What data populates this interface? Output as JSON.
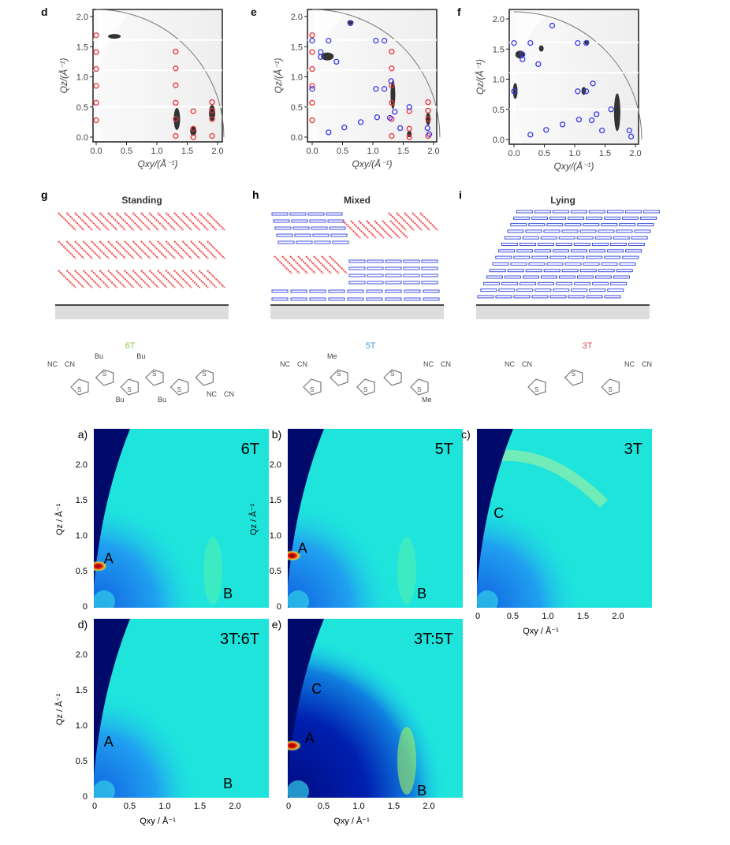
{
  "chart_data": [
    {
      "type": "scatter",
      "panel": "d",
      "xlabel": "Qxy/(Å⁻¹)",
      "ylabel": "Qz/(Å⁻¹)",
      "xlim": [
        0,
        2.0
      ],
      "ylim": [
        0,
        2.0
      ],
      "xticks": [
        "0.0",
        "0.5",
        "1.0",
        "1.5",
        "2.0"
      ],
      "yticks": [
        "0.0",
        "0.5",
        "1.0",
        "1.5",
        "2.0"
      ],
      "series": [
        {
          "name": "standing",
          "color": "#e8333a",
          "points": [
            [
              0,
              0.28
            ],
            [
              0,
              0.57
            ],
            [
              0,
              0.85
            ],
            [
              0,
              1.13
            ],
            [
              0,
              1.41
            ],
            [
              0,
              1.69
            ],
            [
              1.31,
              0.02
            ],
            [
              1.31,
              0.3
            ],
            [
              1.31,
              0.57
            ],
            [
              1.31,
              0.86
            ],
            [
              1.31,
              1.14
            ],
            [
              1.31,
              1.42
            ],
            [
              1.6,
              0.0
            ],
            [
              1.6,
              0.14
            ],
            [
              1.6,
              0.43
            ],
            [
              1.91,
              0.02
            ],
            [
              1.91,
              0.3
            ],
            [
              1.91,
              0.44
            ],
            [
              1.91,
              0.58
            ]
          ]
        }
      ]
    },
    {
      "type": "scatter",
      "panel": "e",
      "xlabel": "Qxy/(Å⁻¹)",
      "ylabel": "Qz/(Å⁻¹)",
      "xlim": [
        0,
        2.0
      ],
      "ylim": [
        0,
        2.0
      ],
      "xticks": [
        "0.0",
        "0.5",
        "1.0",
        "1.5",
        "2.0"
      ],
      "yticks": [
        "0.0",
        "0.5",
        "1.0",
        "1.5",
        "2.0"
      ],
      "series": [
        {
          "name": "standing",
          "color": "#e8333a",
          "points": [
            [
              0,
              0.28
            ],
            [
              0,
              0.57
            ],
            [
              0,
              0.85
            ],
            [
              0,
              1.13
            ],
            [
              0,
              1.41
            ],
            [
              0,
              1.69
            ],
            [
              1.31,
              0.02
            ],
            [
              1.31,
              0.3
            ],
            [
              1.31,
              0.57
            ],
            [
              1.31,
              0.86
            ],
            [
              1.31,
              1.14
            ],
            [
              1.31,
              1.42
            ],
            [
              1.6,
              0.0
            ],
            [
              1.6,
              0.14
            ],
            [
              1.6,
              0.43
            ],
            [
              1.91,
              0.02
            ],
            [
              1.91,
              0.3
            ],
            [
              1.91,
              0.44
            ],
            [
              1.91,
              0.58
            ]
          ]
        },
        {
          "name": "lying",
          "color": "#3a3ae8",
          "points": [
            [
              0,
              0.8
            ],
            [
              0,
              1.6
            ],
            [
              0.14,
              1.41
            ],
            [
              0.14,
              1.33
            ],
            [
              0.27,
              1.6
            ],
            [
              0.4,
              1.25
            ],
            [
              0.63,
              1.89
            ],
            [
              1.05,
              1.6
            ],
            [
              1.19,
              1.6
            ],
            [
              1.05,
              0.8
            ],
            [
              1.19,
              0.8
            ],
            [
              1.3,
              0.93
            ],
            [
              0.27,
              0.08
            ],
            [
              0.53,
              0.16
            ],
            [
              0.8,
              0.25
            ],
            [
              1.07,
              0.33
            ],
            [
              1.28,
              0.32
            ],
            [
              1.36,
              0.42
            ],
            [
              1.45,
              0.15
            ],
            [
              1.6,
              0.5
            ],
            [
              1.9,
              0.15
            ],
            [
              1.93,
              0.05
            ]
          ]
        }
      ]
    },
    {
      "type": "scatter",
      "panel": "f",
      "xlabel": "Qxy/(Å⁻¹)",
      "ylabel": "Qz/(Å⁻¹)",
      "xlim": [
        0,
        2.0
      ],
      "ylim": [
        0,
        2.0
      ],
      "xticks": [
        "0.0",
        "0.5",
        "1.0",
        "1.5",
        "2.0"
      ],
      "yticks": [
        "0.0",
        "0.5",
        "1.0",
        "1.5",
        "2.0"
      ],
      "series": [
        {
          "name": "lying",
          "color": "#3a3ae8",
          "points": [
            [
              0,
              0.8
            ],
            [
              0,
              1.6
            ],
            [
              0.14,
              1.41
            ],
            [
              0.14,
              1.33
            ],
            [
              0.27,
              1.6
            ],
            [
              0.4,
              1.25
            ],
            [
              0.63,
              1.89
            ],
            [
              1.05,
              1.6
            ],
            [
              1.19,
              1.6
            ],
            [
              1.05,
              0.8
            ],
            [
              1.19,
              0.8
            ],
            [
              1.3,
              0.93
            ],
            [
              0.27,
              0.08
            ],
            [
              0.53,
              0.16
            ],
            [
              0.8,
              0.25
            ],
            [
              1.07,
              0.33
            ],
            [
              1.28,
              0.32
            ],
            [
              1.36,
              0.42
            ],
            [
              1.45,
              0.15
            ],
            [
              1.6,
              0.5
            ],
            [
              1.9,
              0.15
            ],
            [
              1.93,
              0.05
            ]
          ]
        }
      ]
    },
    {
      "type": "heatmap",
      "panel": "a)",
      "title": "6T",
      "xlim": [
        0,
        2.5
      ],
      "ylim": [
        0,
        2.5
      ],
      "annotations": [
        {
          "text": "A",
          "x": 0.2,
          "y": 0.7
        },
        {
          "text": "B",
          "x": 1.9,
          "y": 0.2
        }
      ],
      "hotspot": [
        0.05,
        0.57
      ]
    },
    {
      "type": "heatmap",
      "panel": "b)",
      "title": "5T",
      "xlim": [
        0,
        2.5
      ],
      "ylim": [
        0,
        2.5
      ],
      "annotations": [
        {
          "text": "A",
          "x": 0.2,
          "y": 0.85
        },
        {
          "text": "B",
          "x": 1.9,
          "y": 0.2
        }
      ],
      "hotspot": [
        0.05,
        0.72
      ]
    },
    {
      "type": "heatmap",
      "panel": "c)",
      "title": "3T",
      "xlim": [
        0,
        2.5
      ],
      "ylim": [
        0,
        2.5
      ],
      "annotations": [
        {
          "text": "C",
          "x": 0.3,
          "y": 1.35
        }
      ],
      "hotspot": null
    },
    {
      "type": "heatmap",
      "panel": "d)",
      "title": "3T:6T",
      "xlim": [
        0,
        2.5
      ],
      "ylim": [
        0,
        2.5
      ],
      "annotations": [
        {
          "text": "A",
          "x": 0.2,
          "y": 0.8
        },
        {
          "text": "B",
          "x": 1.9,
          "y": 0.2
        }
      ],
      "hotspot": null
    },
    {
      "type": "heatmap",
      "panel": "e)",
      "title": "3T:5T",
      "xlim": [
        0,
        2.5
      ],
      "ylim": [
        0,
        2.5
      ],
      "annotations": [
        {
          "text": "C",
          "x": 0.4,
          "y": 1.55
        },
        {
          "text": "A",
          "x": 0.3,
          "y": 0.85
        },
        {
          "text": "B",
          "x": 1.9,
          "y": 0.1
        }
      ],
      "hotspot": [
        0.05,
        0.72
      ]
    }
  ],
  "heat_axes": {
    "xticks": [
      "0",
      "0.5",
      "1.0",
      "1.5",
      "2.0"
    ],
    "yticks": [
      "0",
      "0.5",
      "1.0",
      "1.5",
      "2.0"
    ],
    "xlabel": "Qxy / Å⁻¹",
    "ylabel": "Qz / Å⁻¹"
  },
  "schematics": [
    {
      "panel": "g",
      "title": "Standing"
    },
    {
      "panel": "h",
      "title": "Mixed"
    },
    {
      "panel": "i",
      "title": "Lying"
    }
  ],
  "molecules": [
    {
      "name": "6T",
      "color": "#8cc84b",
      "subs": [
        "NC",
        "CN",
        "Bu",
        "Bu",
        "Bu",
        "Bu",
        "NC",
        "CN"
      ]
    },
    {
      "name": "5T",
      "color": "#4a9ad8",
      "subs": [
        "NC",
        "CN",
        "Me",
        "Me",
        "NC",
        "CN"
      ]
    },
    {
      "name": "3T",
      "color": "#e04a5a",
      "subs": [
        "NC",
        "CN",
        "NC",
        "CN"
      ]
    }
  ]
}
